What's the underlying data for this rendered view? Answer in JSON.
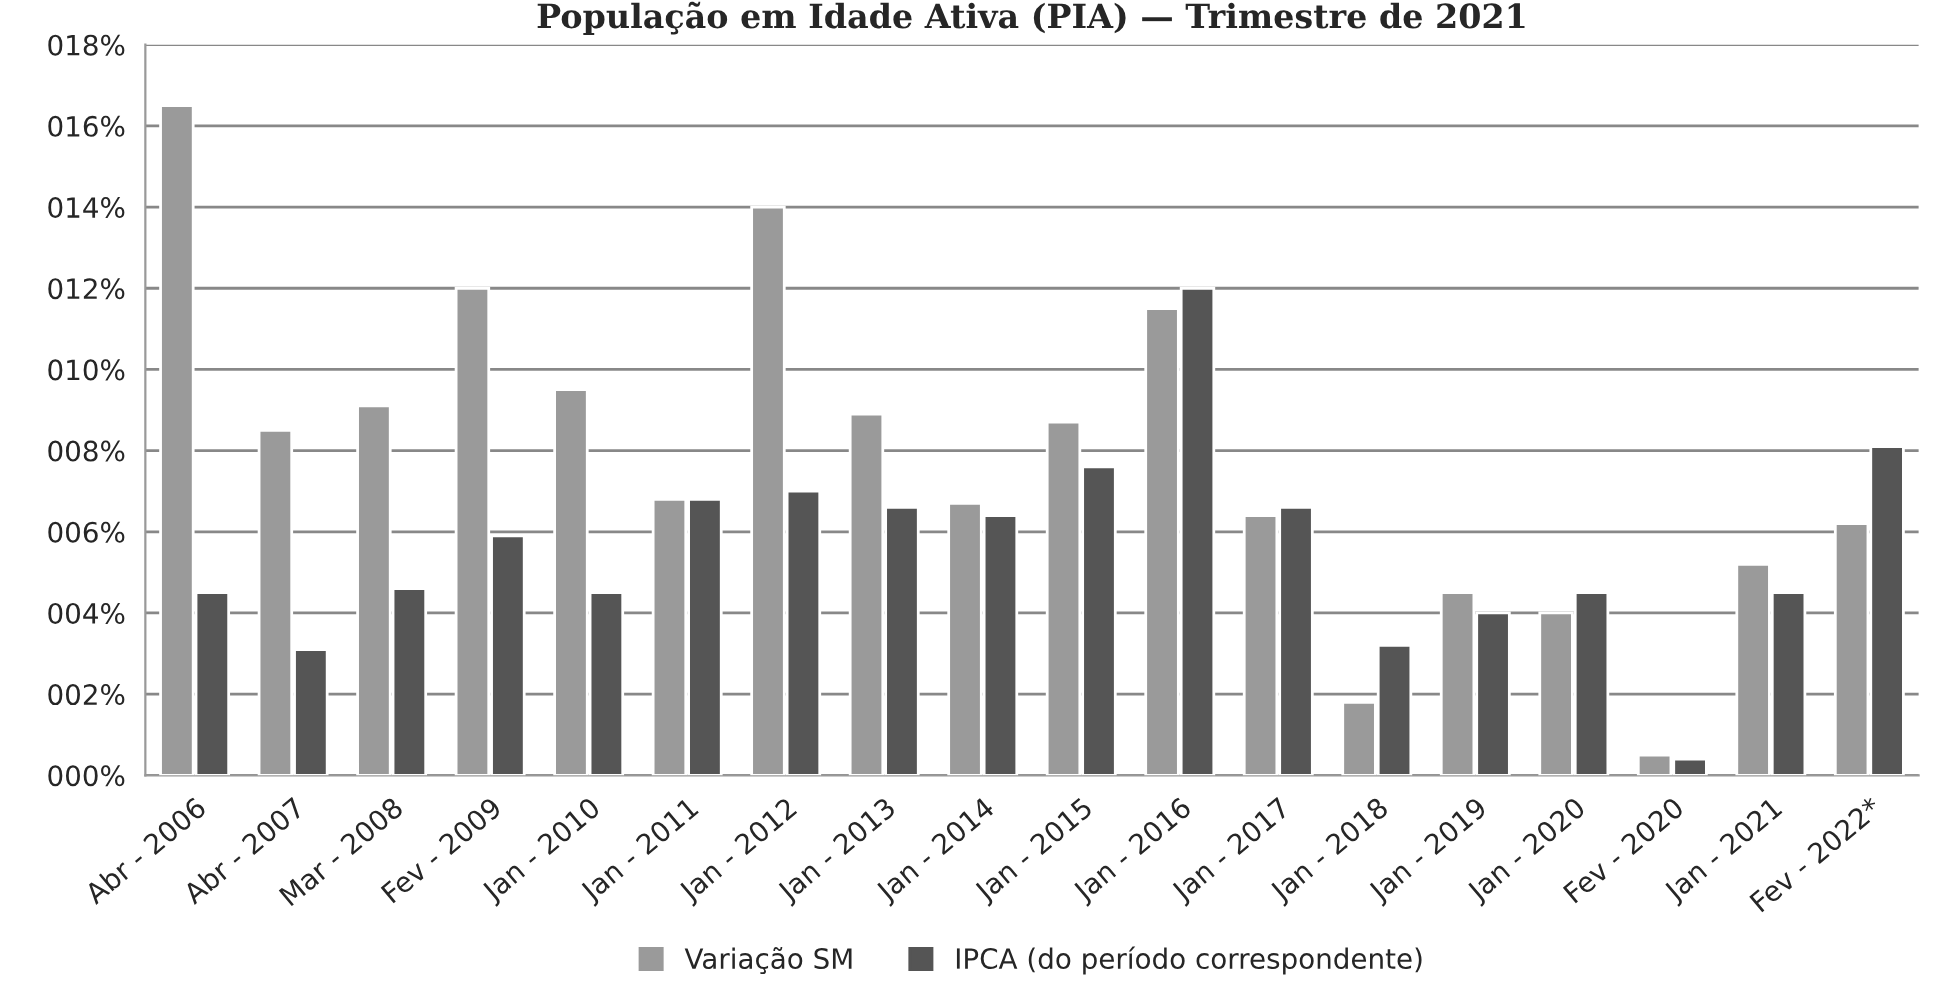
{
  "chart_data": {
    "type": "bar",
    "title": "População em Idade Ativa (PIA) — Trimestre de 2021",
    "categories": [
      "Abr - 2006",
      "Abr - 2007",
      "Mar - 2008",
      "Fev - 2009",
      "Jan - 2010",
      "Jan - 2011",
      "Jan - 2012",
      "Jan - 2013",
      "Jan - 2014",
      "Jan - 2015",
      "Jan - 2016",
      "Jan - 2017",
      "Jan - 2018",
      "Jan - 2019",
      "Jan - 2020",
      "Fev - 2020",
      "Jan - 2021",
      "Fev - 2022*"
    ],
    "series": [
      {
        "name": "Variação SM",
        "color": "#9a9a9a",
        "values": [
          16.5,
          8.5,
          9.1,
          12.0,
          9.5,
          6.8,
          14.0,
          8.9,
          6.7,
          8.7,
          11.5,
          6.4,
          1.8,
          4.5,
          4.0,
          0.5,
          5.2,
          6.2
        ]
      },
      {
        "name": "IPCA (do período correspondente)",
        "color": "#555555",
        "values": [
          4.5,
          3.1,
          4.6,
          5.9,
          4.5,
          6.8,
          7.0,
          6.6,
          6.4,
          7.6,
          12.0,
          6.6,
          3.2,
          4.0,
          4.5,
          0.4,
          4.5,
          8.1
        ]
      }
    ],
    "ylim": [
      0,
      18
    ],
    "yticks": [
      {
        "value": 0,
        "label": "000%"
      },
      {
        "value": 2,
        "label": "002%"
      },
      {
        "value": 4,
        "label": "004%"
      },
      {
        "value": 6,
        "label": "006%"
      },
      {
        "value": 8,
        "label": "008%"
      },
      {
        "value": 10,
        "label": "010%"
      },
      {
        "value": 12,
        "label": "012%"
      },
      {
        "value": 14,
        "label": "014%"
      },
      {
        "value": 16,
        "label": "016%"
      },
      {
        "value": 18,
        "label": "018%"
      }
    ],
    "grid": "y",
    "legend": "bottom"
  }
}
